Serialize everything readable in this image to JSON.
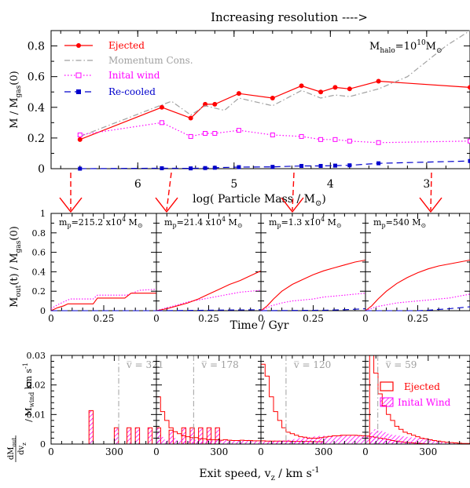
{
  "header": "Increasing resolution ---->",
  "colors": {
    "ejected": "#ff0000",
    "momentum": "#a0a0a0",
    "initial_wind": "#ff00ff",
    "recooled": "#0000cc",
    "arrow": "#ff0000",
    "mean_line": "#a0a0a0"
  },
  "chart_data": [
    {
      "type": "line",
      "panel": "top",
      "xlabel": "log( Particle Mass / M",
      "xlabel_sub": "⊙",
      "ylabel": "M / M",
      "ylabel_sub": "gas",
      "ylabel_tail": "(0)",
      "xlim": [
        6.9,
        2.55
      ],
      "ylim": [
        0,
        0.9
      ],
      "x_ticks": [
        "6",
        "5",
        "4",
        "3"
      ],
      "y_ticks": [
        "0",
        "0.2",
        "0.4",
        "0.6",
        "0.8"
      ],
      "annotation": {
        "base": "M",
        "sub": "halo",
        "mid": "=10",
        "sup": "10",
        "tail": "M",
        "tail_sub": "⊙"
      },
      "series": [
        {
          "name": "Ejected",
          "style": "solid-dot",
          "x": [
            6.6,
            5.75,
            5.45,
            5.3,
            5.2,
            4.95,
            4.6,
            4.3,
            4.1,
            3.95,
            3.8,
            3.5,
            2.55
          ],
          "y": [
            0.19,
            0.4,
            0.33,
            0.42,
            0.42,
            0.49,
            0.46,
            0.54,
            0.5,
            0.53,
            0.52,
            0.57,
            0.53
          ]
        },
        {
          "name": "Momentum Cons.",
          "style": "dashdot",
          "x": [
            6.6,
            5.65,
            5.45,
            5.3,
            5.1,
            4.95,
            4.6,
            4.3,
            4.1,
            3.95,
            3.8,
            3.5,
            3.2,
            2.8,
            2.55
          ],
          "y": [
            0.21,
            0.44,
            0.35,
            0.41,
            0.38,
            0.46,
            0.41,
            0.51,
            0.46,
            0.48,
            0.47,
            0.52,
            0.6,
            0.8,
            0.9
          ]
        },
        {
          "name": "Inital wind",
          "style": "dotted-square",
          "x": [
            6.6,
            5.75,
            5.45,
            5.3,
            5.2,
            4.95,
            4.6,
            4.3,
            4.1,
            3.95,
            3.8,
            3.5,
            2.55
          ],
          "y": [
            0.22,
            0.3,
            0.21,
            0.23,
            0.23,
            0.25,
            0.22,
            0.21,
            0.19,
            0.19,
            0.18,
            0.17,
            0.18
          ]
        },
        {
          "name": "Re-cooled",
          "style": "dashed-square",
          "x": [
            6.6,
            5.75,
            5.45,
            5.3,
            5.2,
            4.95,
            4.6,
            4.3,
            4.1,
            3.95,
            3.8,
            3.5,
            2.55
          ],
          "y": [
            0.0,
            0.003,
            0.002,
            0.004,
            0.006,
            0.01,
            0.012,
            0.018,
            0.018,
            0.02,
            0.022,
            0.035,
            0.05
          ]
        }
      ]
    },
    {
      "type": "line",
      "panel": "middle",
      "xlabel": "Time / Gyr",
      "ylabel": "M",
      "ylabel_sub": "out",
      "ylabel_mid": "(t) / M",
      "ylabel_sub2": "gas",
      "ylabel_tail": "(0)",
      "xlim": [
        0,
        0.5
      ],
      "ylim": [
        0,
        1
      ],
      "x_ticks": [
        "0",
        "0.25"
      ],
      "y_ticks": [
        "0",
        "0.2",
        "0.4",
        "0.6",
        "0.8",
        "1"
      ],
      "subpanels": [
        {
          "label_pre": "m",
          "label_sub": "p",
          "label_mid": "=215.2 x10",
          "label_sup": "4",
          "label_tail": " M",
          "label_tail_sub": "⊙",
          "ejected": {
            "t": [
              0,
              0.03,
              0.06,
              0.08,
              0.1,
              0.15,
              0.2,
              0.22,
              0.25,
              0.3,
              0.35,
              0.38,
              0.5
            ],
            "m": [
              0,
              0.03,
              0.05,
              0.07,
              0.07,
              0.07,
              0.07,
              0.13,
              0.13,
              0.13,
              0.13,
              0.18,
              0.18
            ]
          },
          "wind": {
            "t": [
              0,
              0.03,
              0.06,
              0.09,
              0.12,
              0.2,
              0.22,
              0.3,
              0.36,
              0.42,
              0.5
            ],
            "m": [
              0.02,
              0.06,
              0.09,
              0.12,
              0.12,
              0.12,
              0.16,
              0.16,
              0.16,
              0.21,
              0.22
            ]
          },
          "recooled": {
            "t": [
              0,
              0.5
            ],
            "m": [
              0,
              0
            ]
          }
        },
        {
          "label_pre": "m",
          "label_sub": "p",
          "label_mid": "=21.4 x10",
          "label_sup": "4",
          "label_tail": " M",
          "label_tail_sub": "⊙",
          "ejected": {
            "t": [
              0,
              0.05,
              0.1,
              0.15,
              0.2,
              0.25,
              0.3,
              0.35,
              0.4,
              0.45,
              0.5
            ],
            "m": [
              0,
              0.02,
              0.05,
              0.08,
              0.12,
              0.17,
              0.22,
              0.27,
              0.31,
              0.36,
              0.41
            ]
          },
          "wind": {
            "t": [
              0,
              0.05,
              0.1,
              0.15,
              0.2,
              0.25,
              0.3,
              0.35,
              0.4,
              0.45,
              0.5
            ],
            "m": [
              0,
              0.03,
              0.06,
              0.09,
              0.11,
              0.13,
              0.15,
              0.17,
              0.19,
              0.2,
              0.21
            ]
          },
          "recooled": {
            "t": [
              0,
              0.5
            ],
            "m": [
              0,
              0.01
            ]
          }
        },
        {
          "label_pre": "m",
          "label_sub": "p",
          "label_mid": "=1.3 x10",
          "label_sup": "4",
          "label_tail": " M",
          "label_tail_sub": "⊙",
          "ejected": {
            "t": [
              0,
              0.03,
              0.06,
              0.1,
              0.15,
              0.2,
              0.25,
              0.3,
              0.35,
              0.4,
              0.45,
              0.5
            ],
            "m": [
              0,
              0.05,
              0.12,
              0.2,
              0.27,
              0.32,
              0.37,
              0.41,
              0.44,
              0.47,
              0.5,
              0.52
            ]
          },
          "wind": {
            "t": [
              0,
              0.05,
              0.1,
              0.15,
              0.2,
              0.25,
              0.3,
              0.35,
              0.4,
              0.45,
              0.5
            ],
            "m": [
              0,
              0.05,
              0.08,
              0.1,
              0.11,
              0.12,
              0.14,
              0.15,
              0.16,
              0.17,
              0.18
            ]
          },
          "recooled": {
            "t": [
              0,
              0.3,
              0.4,
              0.5
            ],
            "m": [
              0,
              0.005,
              0.01,
              0.02
            ]
          }
        },
        {
          "label_pre": "m",
          "label_sub": "p",
          "label_mid": "=540 M",
          "label_sup": "",
          "label_tail": "",
          "label_tail_sub": "⊙",
          "ejected": {
            "t": [
              0,
              0.03,
              0.06,
              0.1,
              0.15,
              0.2,
              0.25,
              0.3,
              0.35,
              0.4,
              0.45,
              0.5
            ],
            "m": [
              0,
              0.05,
              0.12,
              0.2,
              0.28,
              0.34,
              0.39,
              0.43,
              0.46,
              0.48,
              0.5,
              0.52
            ]
          },
          "wind": {
            "t": [
              0,
              0.05,
              0.1,
              0.15,
              0.2,
              0.25,
              0.3,
              0.35,
              0.4,
              0.45,
              0.5
            ],
            "m": [
              0,
              0.04,
              0.06,
              0.08,
              0.09,
              0.1,
              0.11,
              0.12,
              0.13,
              0.15,
              0.17
            ]
          },
          "recooled": {
            "t": [
              0,
              0.25,
              0.3,
              0.4,
              0.5
            ],
            "m": [
              0,
              0,
              0.005,
              0.02,
              0.04
            ]
          }
        }
      ]
    },
    {
      "type": "bar",
      "panel": "bottom",
      "xlabel_pre": "Exit speed, v",
      "xlabel_sub": "z",
      "xlabel_mid": " / km s",
      "xlabel_sup": "-1",
      "ylabel": "dM_out/dv_z / M_wind km s^-1",
      "xlim": [
        0,
        500
      ],
      "ylim": [
        0,
        0.03
      ],
      "x_ticks": [
        "0",
        "300"
      ],
      "y_ticks": [
        "0",
        "0.01",
        "0.02",
        "0.03"
      ],
      "legend": {
        "ejected": "Ejected",
        "wind": "Inital Wind",
        "position": "right"
      },
      "bin_width": 20,
      "subpanels": [
        {
          "vbar": "v̅ = 321",
          "vbar_value": 321,
          "ejected": [
            0,
            0,
            0,
            0,
            0,
            0,
            0,
            0,
            0,
            0.0113,
            0,
            0,
            0,
            0,
            0,
            0.0055,
            0,
            0,
            0.0055,
            0,
            0.0055,
            0,
            0,
            0.0055,
            0,
            0.0055,
            0,
            0,
            0.0047,
            0,
            0,
            0.0055,
            0,
            0.0055,
            0,
            0.0055,
            0,
            0.0055,
            0,
            0.0055
          ],
          "wind": [
            0,
            0,
            0,
            0,
            0,
            0,
            0,
            0,
            0,
            0.0113,
            0,
            0,
            0,
            0,
            0,
            0.0055,
            0,
            0,
            0.0055,
            0,
            0.0055,
            0,
            0,
            0.0055,
            0,
            0.0055,
            0,
            0,
            0.0047,
            0,
            0,
            0.0055,
            0,
            0.0055,
            0,
            0.0055,
            0,
            0.0055,
            0,
            0.0055
          ]
        },
        {
          "vbar": "v̅ = 178",
          "vbar_value": 178,
          "ejected": [
            0.016,
            0.011,
            0.008,
            0.0055,
            0.0042,
            0.0035,
            0.0028,
            0.0025,
            0.0022,
            0.0022,
            0.0018,
            0.0018,
            0.0015,
            0.0015,
            0.0015,
            0.0013,
            0.0015,
            0.0013,
            0.0012,
            0.0012,
            0.0013,
            0.0012,
            0.0012,
            0.0011,
            0.0011,
            0.0011,
            0.001,
            0.001,
            0.001,
            0.001,
            0.001,
            0.001,
            0.0009,
            0.0009,
            0.0009,
            0.0009,
            0.0009,
            0.0008,
            0.0008,
            0.0008
          ],
          "wind": [
            0.0016,
            0.0024,
            0.0012,
            0.0014,
            0.002,
            0.0012,
            0.0016,
            0.0012,
            0.0014,
            0.0014,
            0.0016,
            0.0012,
            0.0014,
            0.0012,
            0.0012,
            0.0012,
            0.0016,
            0.0012,
            0.0012,
            0.0012,
            0.0012,
            0.0012,
            0.0014,
            0.0012,
            0.0012,
            0.0012,
            0.0012,
            0.0012,
            0.0012,
            0.0012,
            0.0012,
            0.0012,
            0.0012,
            0.0012,
            0.0012,
            0.0012,
            0.0012,
            0.0012,
            0.0012,
            0.0012
          ]
        },
        {
          "vbar": "v̅ = 120",
          "vbar_value": 120,
          "ejected": [
            0.027,
            0.023,
            0.016,
            0.011,
            0.008,
            0.0055,
            0.004,
            0.0035,
            0.003,
            0.0025,
            0.0023,
            0.002,
            0.002,
            0.002,
            0.0022,
            0.0024,
            0.0026,
            0.0028,
            0.0028,
            0.003,
            0.003,
            0.003,
            0.003,
            0.0029,
            0.0028,
            0.0027,
            0.0025,
            0.0023,
            0.002,
            0.0018,
            0.0015,
            0.0012,
            0.001,
            0.0008,
            0.0006,
            0.0005,
            0.0004,
            0.0003,
            0.0002,
            0.0001
          ],
          "wind": [
            0.0002,
            0.0004,
            0.0006,
            0.0008,
            0.001,
            0.0012,
            0.0014,
            0.0016,
            0.0018,
            0.002,
            0.0022,
            0.0024,
            0.0026,
            0.0027,
            0.0028,
            0.0028,
            0.0028,
            0.0029,
            0.0029,
            0.003,
            0.003,
            0.003,
            0.003,
            0.0029,
            0.0028,
            0.0027,
            0.0025,
            0.0023,
            0.002,
            0.0018,
            0.0015,
            0.0012,
            0.001,
            0.0008,
            0.0006,
            0.0005,
            0.0004,
            0.0003,
            0.0002,
            0.0001
          ]
        },
        {
          "vbar": "v̅ = 59",
          "vbar_value": 59,
          "ejected": [
            0,
            0.032,
            0.024,
            0.017,
            0.013,
            0.01,
            0.008,
            0.006,
            0.005,
            0.004,
            0.0035,
            0.003,
            0.0025,
            0.002,
            0.0018,
            0.0015,
            0.0012,
            0.001,
            0.0008,
            0.0006,
            0.0005,
            0.0004,
            0.0003,
            0.0002,
            0.0002,
            0.0001,
            0,
            0,
            0,
            0,
            0,
            0,
            0,
            0,
            0,
            0,
            0,
            0,
            0,
            0
          ],
          "wind": [
            0,
            0.004,
            0.005,
            0.0045,
            0.004,
            0.0035,
            0.0032,
            0.003,
            0.0028,
            0.0026,
            0.0024,
            0.0022,
            0.002,
            0.0018,
            0.0016,
            0.0014,
            0.0012,
            0.001,
            0.0008,
            0.0006,
            0.0005,
            0.0004,
            0.0003,
            0.0002,
            0.0001,
            0,
            0,
            0,
            0,
            0,
            0,
            0,
            0,
            0,
            0,
            0,
            0,
            0,
            0,
            0
          ]
        }
      ]
    }
  ]
}
